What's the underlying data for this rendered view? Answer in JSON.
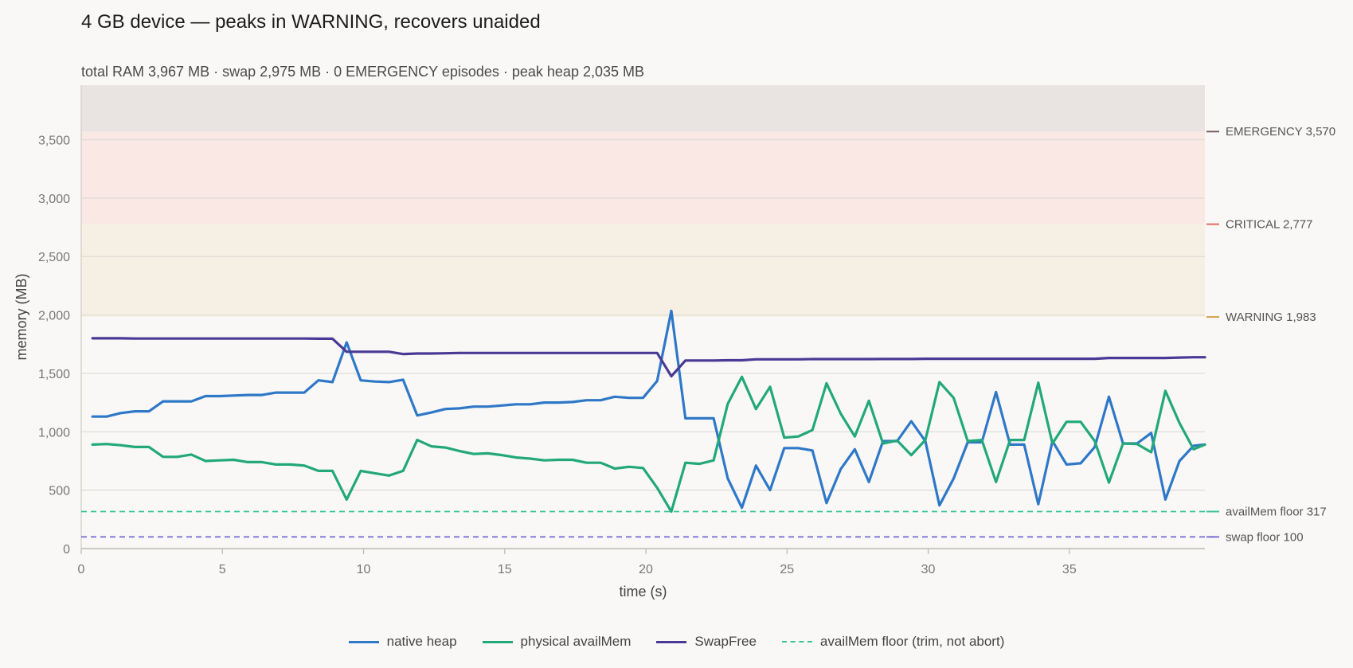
{
  "chart_data": {
    "type": "line",
    "title": "4 GB device — peaks in WARNING, recovers unaided",
    "subtitle": "total RAM 3,967 MB · swap 2,975 MB · 0 EMERGENCY episodes · peak heap 2,035 MB",
    "xlabel": "time (s)",
    "ylabel": "memory (MB)",
    "xlim": [
      0,
      39.8
    ],
    "ylim": [
      0,
      3967
    ],
    "xticks": [
      0,
      5,
      10,
      15,
      20,
      25,
      30,
      35
    ],
    "yticks": [
      0,
      500,
      1000,
      1500,
      2000,
      2500,
      3000,
      3500
    ],
    "grid": "horizontal",
    "legend_position": "bottom-center",
    "bands": [
      {
        "name": "WARNING",
        "from": 1983,
        "to": 2777,
        "color": "#f6f0e4"
      },
      {
        "name": "CRITICAL",
        "from": 2777,
        "to": 3570,
        "color": "#f9e8e4"
      },
      {
        "name": "EMERGENCY",
        "from": 3570,
        "to": 3967,
        "color": "#e9e4e1"
      }
    ],
    "thresholds": [
      {
        "label": "EMERGENCY",
        "value_text": "3,570",
        "value": 3570,
        "color": "#7a5a60",
        "dashed": false,
        "extend": false
      },
      {
        "label": "CRITICAL",
        "value_text": "2,777",
        "value": 2777,
        "color": "#e06b5e",
        "dashed": false,
        "extend": false
      },
      {
        "label": "WARNING",
        "value_text": "1,983",
        "value": 1983,
        "color": "#d4a24e",
        "dashed": false,
        "extend": false
      },
      {
        "label": "availMem floor",
        "value_text": "317",
        "value": 317,
        "color": "#3cc39a",
        "dashed": true,
        "extend": true
      },
      {
        "label": "swap floor",
        "value_text": "100",
        "value": 100,
        "color": "#7b72d6",
        "dashed": true,
        "extend": true
      }
    ],
    "x": [
      0.4,
      0.9,
      1.4,
      1.9,
      2.4,
      2.9,
      3.4,
      3.9,
      4.4,
      4.9,
      5.4,
      5.9,
      6.4,
      6.9,
      7.4,
      7.9,
      8.4,
      8.9,
      9.4,
      9.9,
      10.4,
      10.9,
      11.4,
      11.9,
      12.4,
      12.9,
      13.4,
      13.9,
      14.4,
      14.9,
      15.4,
      15.9,
      16.4,
      16.9,
      17.4,
      17.9,
      18.4,
      18.9,
      19.4,
      19.9,
      20.4,
      20.9,
      21.4,
      21.9,
      22.4,
      22.9,
      23.4,
      23.9,
      24.4,
      24.9,
      25.4,
      25.9,
      26.4,
      26.9,
      27.4,
      27.9,
      28.4,
      28.9,
      29.4,
      29.9,
      30.4,
      30.9,
      31.4,
      31.9,
      32.4,
      32.9,
      33.4,
      33.9,
      34.4,
      34.9,
      35.4,
      35.9,
      36.4,
      36.9,
      37.4,
      37.9,
      38.4,
      38.9,
      39.4,
      39.8
    ],
    "series": [
      {
        "name": "native heap",
        "color": "#2f78c8",
        "dashed": false,
        "values": [
          1130,
          1130,
          1160,
          1175,
          1175,
          1260,
          1260,
          1260,
          1305,
          1305,
          1310,
          1315,
          1315,
          1335,
          1335,
          1335,
          1440,
          1425,
          1765,
          1440,
          1430,
          1425,
          1445,
          1140,
          1165,
          1195,
          1200,
          1215,
          1215,
          1225,
          1235,
          1235,
          1250,
          1250,
          1255,
          1270,
          1270,
          1300,
          1290,
          1290,
          1435,
          2035,
          1115,
          1115,
          1115,
          600,
          350,
          710,
          500,
          860,
          860,
          840,
          390,
          680,
          850,
          570,
          920,
          920,
          1090,
          920,
          370,
          600,
          910,
          910,
          1340,
          890,
          890,
          380,
          920,
          720,
          730,
          870,
          1300,
          900,
          900,
          990,
          420,
          750,
          880,
          890
        ]
      },
      {
        "name": "physical availMem",
        "color": "#22a87a",
        "dashed": false,
        "values": [
          890,
          895,
          885,
          870,
          870,
          785,
          785,
          805,
          750,
          755,
          760,
          740,
          740,
          720,
          720,
          710,
          665,
          665,
          420,
          665,
          645,
          625,
          665,
          930,
          875,
          865,
          835,
          810,
          815,
          800,
          780,
          770,
          755,
          760,
          760,
          735,
          735,
          685,
          700,
          690,
          520,
          317,
          735,
          725,
          755,
          1240,
          1470,
          1195,
          1385,
          950,
          960,
          1015,
          1415,
          1155,
          960,
          1265,
          900,
          925,
          800,
          930,
          1425,
          1290,
          920,
          930,
          570,
          930,
          930,
          1420,
          900,
          1085,
          1085,
          920,
          565,
          900,
          895,
          825,
          1350,
          1075,
          850,
          890
        ]
      },
      {
        "name": "SwapFree",
        "color": "#4a3a96",
        "dashed": false,
        "values": [
          1800,
          1800,
          1800,
          1798,
          1798,
          1798,
          1798,
          1798,
          1798,
          1798,
          1798,
          1798,
          1798,
          1798,
          1798,
          1798,
          1797,
          1797,
          1685,
          1685,
          1685,
          1685,
          1665,
          1670,
          1670,
          1672,
          1675,
          1675,
          1675,
          1675,
          1675,
          1675,
          1675,
          1675,
          1675,
          1675,
          1675,
          1675,
          1675,
          1675,
          1675,
          1475,
          1610,
          1610,
          1610,
          1612,
          1612,
          1620,
          1620,
          1620,
          1620,
          1622,
          1622,
          1622,
          1622,
          1622,
          1623,
          1623,
          1623,
          1625,
          1625,
          1625,
          1625,
          1625,
          1625,
          1625,
          1625,
          1625,
          1625,
          1625,
          1625,
          1625,
          1632,
          1632,
          1632,
          1632,
          1632,
          1635,
          1638,
          1638
        ]
      }
    ],
    "legend": [
      {
        "label": "native heap",
        "color": "#2f78c8",
        "dashed": false
      },
      {
        "label": "physical availMem",
        "color": "#22a87a",
        "dashed": false
      },
      {
        "label": "SwapFree",
        "color": "#4a3a96",
        "dashed": false
      },
      {
        "label": "availMem floor (trim, not abort)",
        "color": "#3cc39a",
        "dashed": true
      }
    ]
  }
}
